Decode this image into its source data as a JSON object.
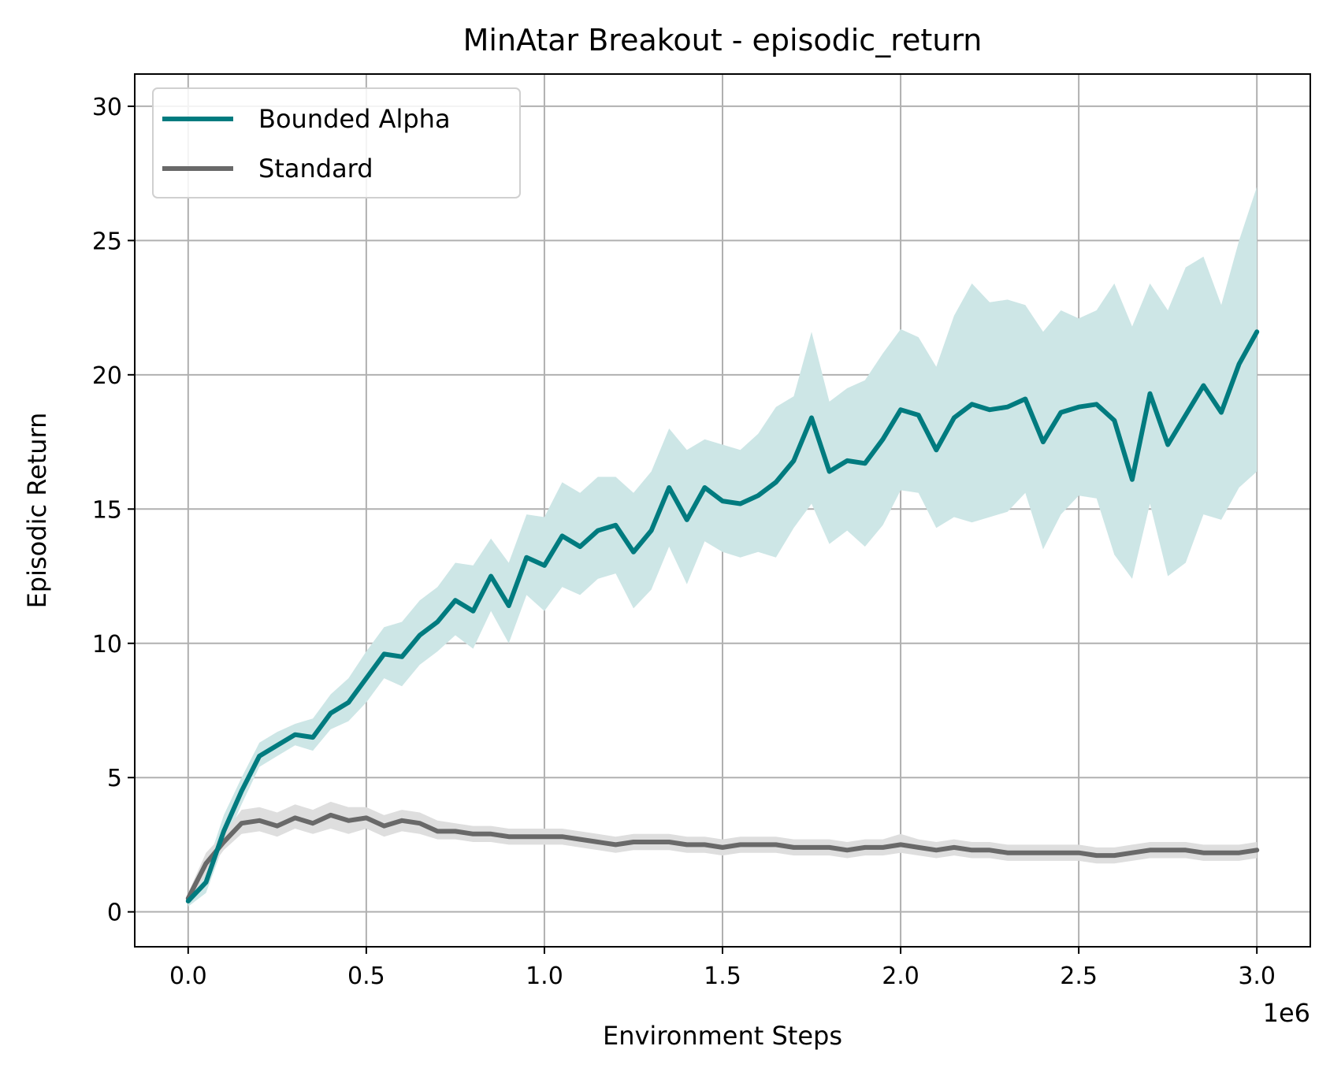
{
  "chart_data": {
    "type": "line",
    "title": "MinAtar Breakout - episodic_return",
    "xlabel": "Environment Steps",
    "ylabel": "Episodic Return",
    "x_offset_label": "1e6",
    "xlim": [
      -150000,
      3150000
    ],
    "ylim": [
      -1.3,
      31.2
    ],
    "x_ticks": [
      0,
      500000,
      1000000,
      1500000,
      2000000,
      2500000,
      3000000
    ],
    "x_tick_labels": [
      "0.0",
      "0.5",
      "1.0",
      "1.5",
      "2.0",
      "2.5",
      "3.0"
    ],
    "y_ticks": [
      0,
      5,
      10,
      15,
      20,
      25,
      30
    ],
    "y_tick_labels": [
      "0",
      "5",
      "10",
      "15",
      "20",
      "25",
      "30"
    ],
    "grid": true,
    "legend_position": "top-left",
    "series": [
      {
        "name": "Bounded Alpha",
        "color": "#007b7f",
        "band_color": "#cde6e6",
        "x": [
          0,
          50000,
          100000,
          150000,
          200000,
          250000,
          300000,
          350000,
          400000,
          450000,
          500000,
          550000,
          600000,
          650000,
          700000,
          750000,
          800000,
          850000,
          900000,
          950000,
          1000000,
          1050000,
          1100000,
          1150000,
          1200000,
          1250000,
          1300000,
          1350000,
          1400000,
          1450000,
          1500000,
          1550000,
          1600000,
          1650000,
          1700000,
          1750000,
          1800000,
          1850000,
          1900000,
          1950000,
          2000000,
          2050000,
          2100000,
          2150000,
          2200000,
          2250000,
          2300000,
          2350000,
          2400000,
          2450000,
          2500000,
          2550000,
          2600000,
          2650000,
          2700000,
          2750000,
          2800000,
          2850000,
          2900000,
          2950000,
          3000000
        ],
        "y": [
          0.4,
          1.1,
          3.0,
          4.5,
          5.8,
          6.2,
          6.6,
          6.5,
          7.4,
          7.8,
          8.7,
          9.6,
          9.5,
          10.3,
          10.8,
          11.6,
          11.2,
          12.5,
          11.4,
          13.2,
          12.9,
          14.0,
          13.6,
          14.2,
          14.4,
          13.4,
          14.2,
          15.8,
          14.6,
          15.8,
          15.3,
          15.2,
          15.5,
          16.0,
          16.8,
          18.4,
          16.4,
          16.8,
          16.7,
          17.6,
          18.7,
          18.5,
          17.2,
          18.4,
          18.9,
          18.7,
          18.8,
          19.1,
          17.5,
          18.6,
          18.8,
          18.9,
          18.3,
          16.1,
          19.3,
          17.4,
          18.5,
          19.6,
          18.6,
          20.4,
          21.6
        ],
        "upper": [
          0.6,
          1.6,
          3.6,
          5.0,
          6.3,
          6.7,
          7.0,
          7.2,
          8.1,
          8.7,
          9.7,
          10.6,
          10.8,
          11.6,
          12.1,
          13.0,
          12.9,
          13.9,
          13.0,
          14.8,
          14.7,
          16.0,
          15.6,
          16.2,
          16.2,
          15.6,
          16.4,
          18.0,
          17.2,
          17.6,
          17.4,
          17.2,
          17.8,
          18.8,
          19.2,
          21.6,
          19.0,
          19.5,
          19.8,
          20.8,
          21.7,
          21.4,
          20.3,
          22.2,
          23.4,
          22.7,
          22.8,
          22.6,
          21.6,
          22.4,
          22.1,
          22.4,
          23.4,
          21.8,
          23.4,
          22.4,
          24.0,
          24.4,
          22.6,
          25.0,
          27.0
        ],
        "lower": [
          0.2,
          0.7,
          2.5,
          4.0,
          5.4,
          5.8,
          6.2,
          6.0,
          6.8,
          7.1,
          7.8,
          8.7,
          8.4,
          9.2,
          9.7,
          10.3,
          9.8,
          11.2,
          10.0,
          11.8,
          11.2,
          12.1,
          11.8,
          12.4,
          12.6,
          11.3,
          12.0,
          13.6,
          12.2,
          13.8,
          13.4,
          13.2,
          13.4,
          13.2,
          14.3,
          15.2,
          13.7,
          14.2,
          13.6,
          14.4,
          15.7,
          15.6,
          14.3,
          14.7,
          14.5,
          14.7,
          14.9,
          15.6,
          13.5,
          14.8,
          15.5,
          15.4,
          13.3,
          12.4,
          15.2,
          12.5,
          13.0,
          14.8,
          14.6,
          15.8,
          16.4
        ]
      },
      {
        "name": "Standard",
        "color": "#696969",
        "band_color": "#dedede",
        "x": [
          0,
          50000,
          100000,
          150000,
          200000,
          250000,
          300000,
          350000,
          400000,
          450000,
          500000,
          550000,
          600000,
          650000,
          700000,
          750000,
          800000,
          850000,
          900000,
          950000,
          1000000,
          1050000,
          1100000,
          1150000,
          1200000,
          1250000,
          1300000,
          1350000,
          1400000,
          1450000,
          1500000,
          1550000,
          1600000,
          1650000,
          1700000,
          1750000,
          1800000,
          1850000,
          1900000,
          1950000,
          2000000,
          2050000,
          2100000,
          2150000,
          2200000,
          2250000,
          2300000,
          2350000,
          2400000,
          2450000,
          2500000,
          2550000,
          2600000,
          2650000,
          2700000,
          2750000,
          2800000,
          2850000,
          2900000,
          2950000,
          3000000
        ],
        "y": [
          0.5,
          1.8,
          2.6,
          3.3,
          3.4,
          3.2,
          3.5,
          3.3,
          3.6,
          3.4,
          3.5,
          3.2,
          3.4,
          3.3,
          3.0,
          3.0,
          2.9,
          2.9,
          2.8,
          2.8,
          2.8,
          2.8,
          2.7,
          2.6,
          2.5,
          2.6,
          2.6,
          2.6,
          2.5,
          2.5,
          2.4,
          2.5,
          2.5,
          2.5,
          2.4,
          2.4,
          2.4,
          2.3,
          2.4,
          2.4,
          2.5,
          2.4,
          2.3,
          2.4,
          2.3,
          2.3,
          2.2,
          2.2,
          2.2,
          2.2,
          2.2,
          2.1,
          2.1,
          2.2,
          2.3,
          2.3,
          2.3,
          2.2,
          2.2,
          2.2,
          2.3
        ],
        "upper": [
          0.7,
          2.2,
          2.9,
          3.8,
          3.9,
          3.7,
          4.0,
          3.8,
          4.1,
          3.9,
          3.9,
          3.6,
          3.8,
          3.7,
          3.4,
          3.3,
          3.2,
          3.2,
          3.1,
          3.1,
          3.1,
          3.1,
          3.0,
          2.9,
          2.8,
          2.9,
          2.9,
          2.9,
          2.8,
          2.8,
          2.7,
          2.8,
          2.8,
          2.8,
          2.7,
          2.7,
          2.7,
          2.6,
          2.7,
          2.7,
          2.9,
          2.7,
          2.6,
          2.7,
          2.6,
          2.6,
          2.5,
          2.5,
          2.5,
          2.5,
          2.5,
          2.4,
          2.4,
          2.5,
          2.6,
          2.6,
          2.6,
          2.5,
          2.5,
          2.5,
          2.6
        ],
        "lower": [
          0.3,
          1.4,
          2.3,
          2.9,
          3.0,
          2.8,
          3.1,
          2.9,
          3.1,
          2.9,
          3.1,
          2.8,
          3.0,
          2.9,
          2.7,
          2.7,
          2.6,
          2.6,
          2.5,
          2.5,
          2.5,
          2.5,
          2.4,
          2.3,
          2.2,
          2.3,
          2.3,
          2.3,
          2.2,
          2.2,
          2.1,
          2.2,
          2.2,
          2.2,
          2.1,
          2.1,
          2.1,
          2.0,
          2.1,
          2.1,
          2.2,
          2.1,
          2.0,
          2.1,
          2.0,
          2.0,
          1.9,
          1.9,
          1.9,
          1.9,
          1.9,
          1.8,
          1.8,
          1.9,
          2.0,
          2.0,
          2.0,
          1.9,
          1.9,
          1.9,
          2.0
        ]
      }
    ]
  }
}
